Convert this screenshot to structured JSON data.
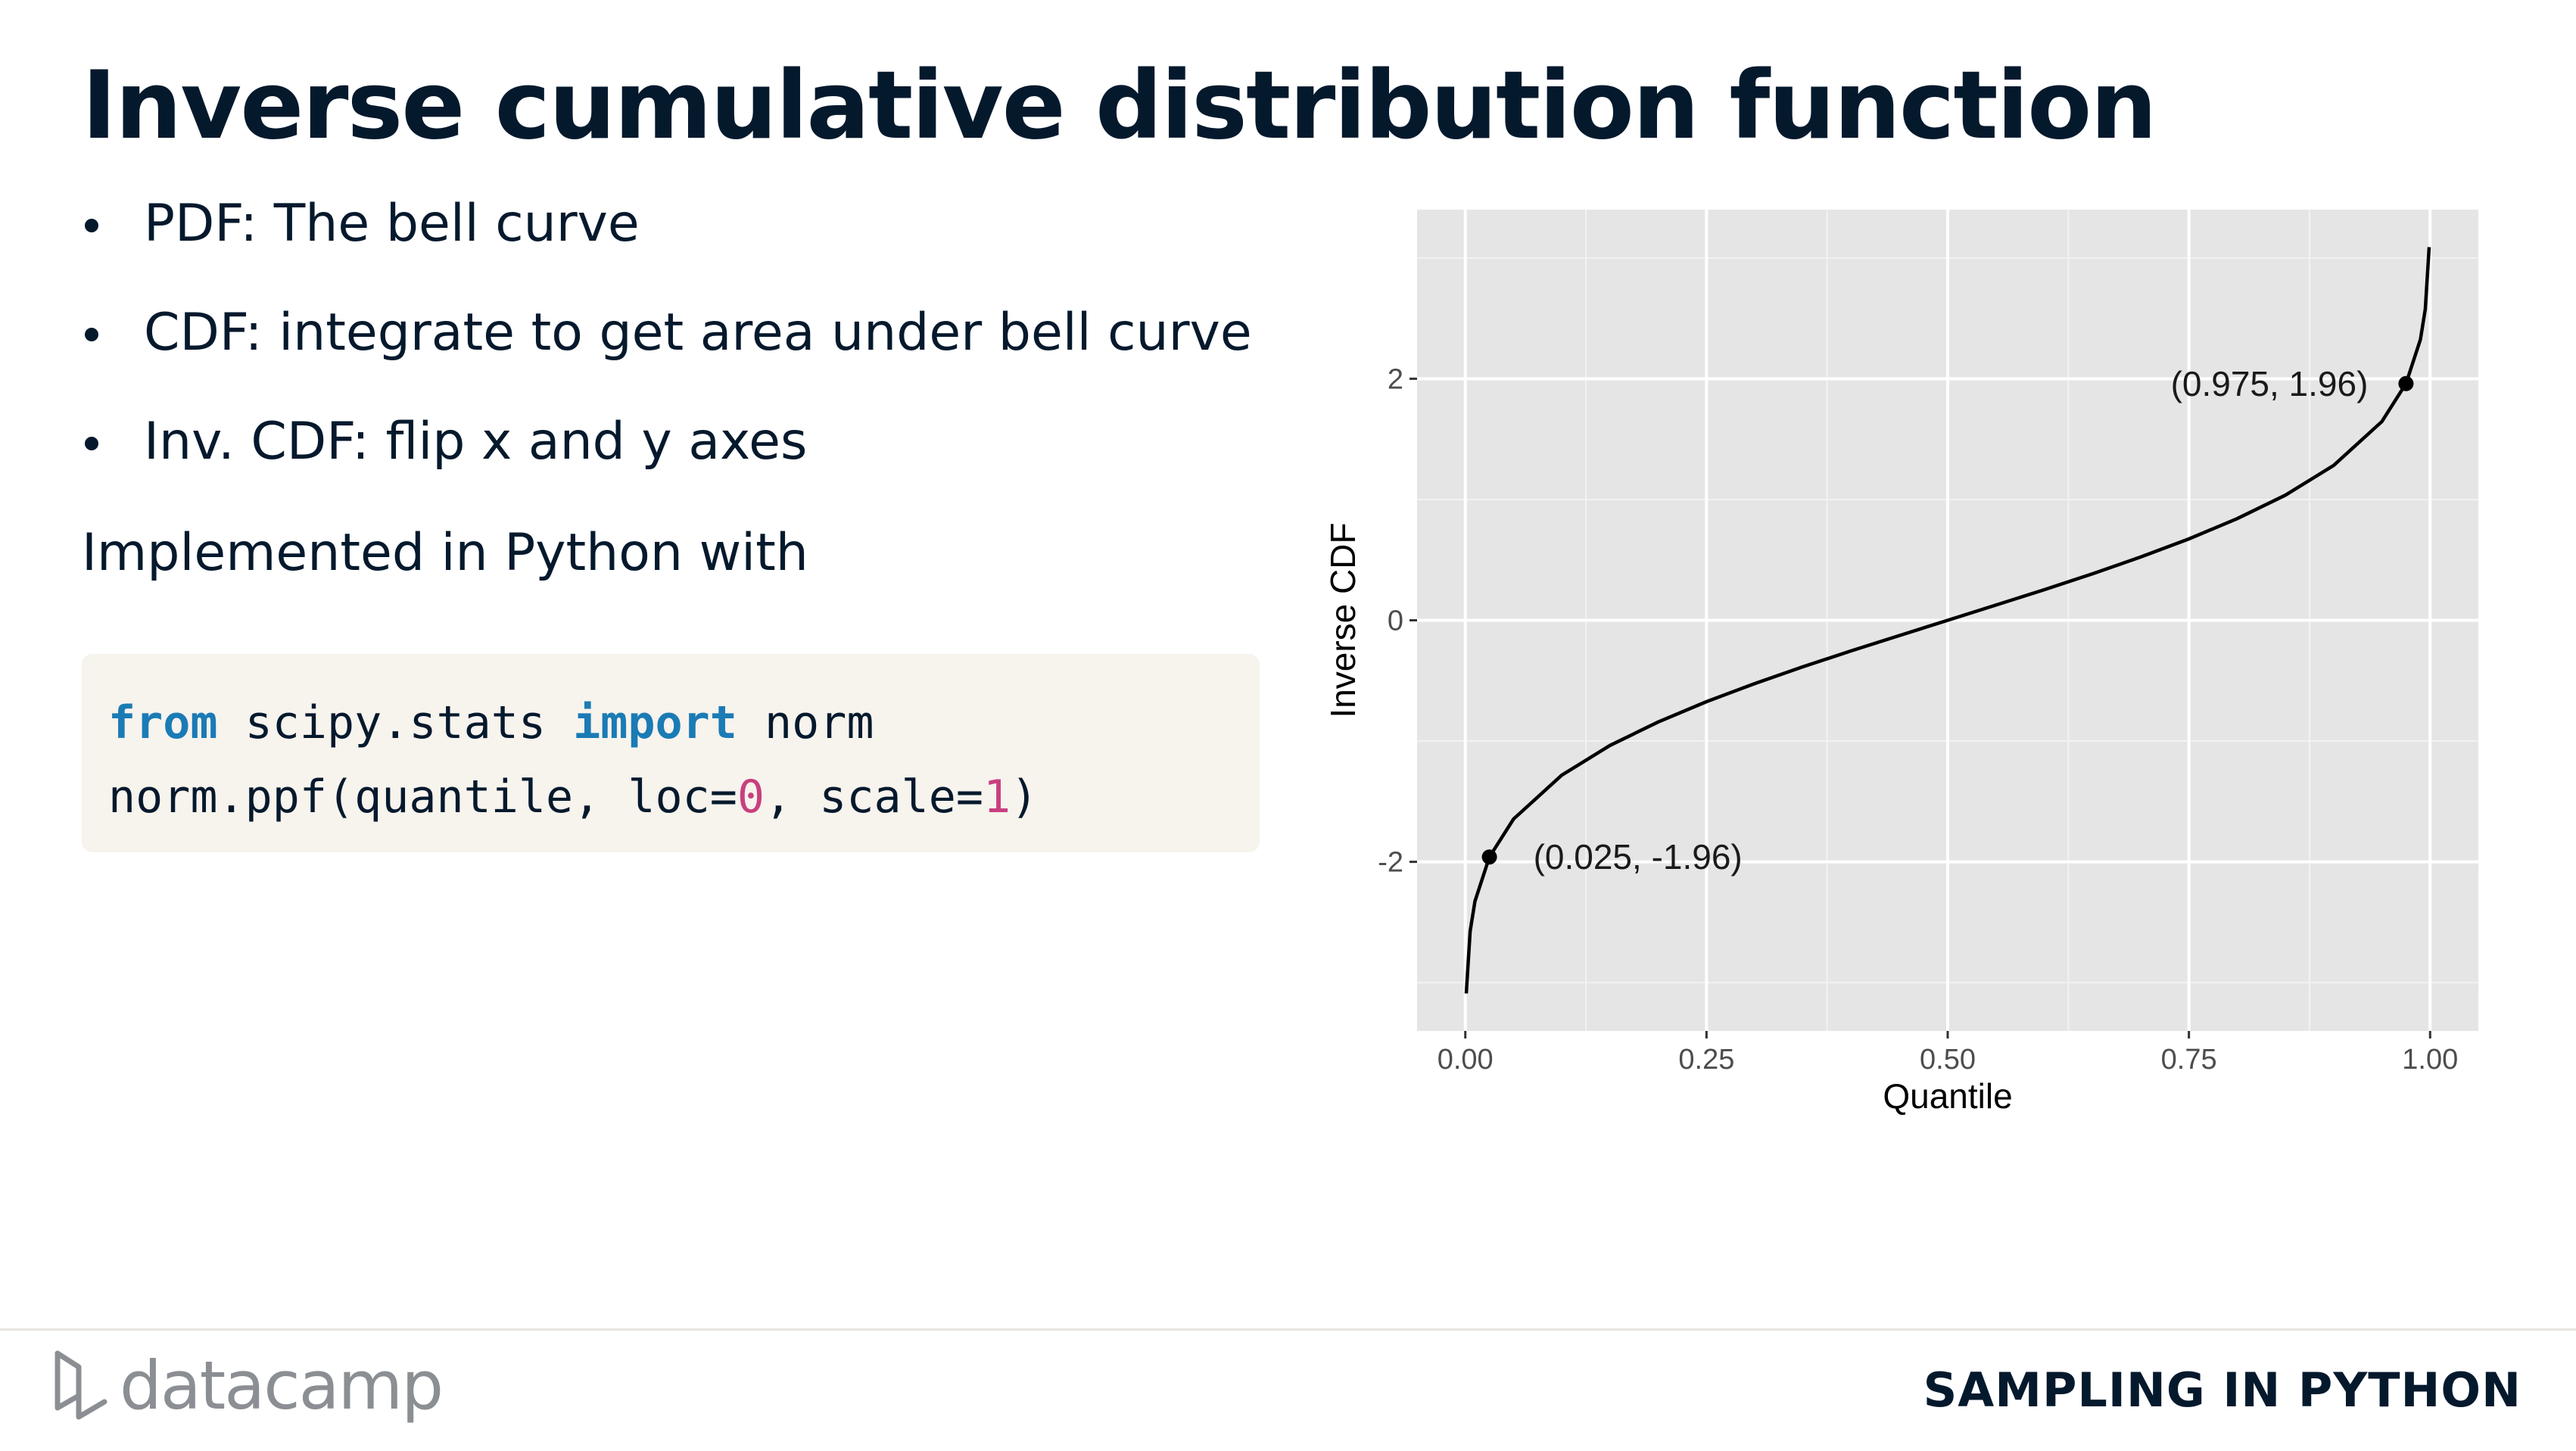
{
  "slide": {
    "title": "Inverse cumulative distribution function",
    "bullets": [
      "PDF: The bell curve",
      "CDF: integrate to get area under bell curve",
      "Inv. CDF: flip x and y axes"
    ],
    "intro": "Implemented in Python with",
    "code": {
      "line1": {
        "kw1": "from",
        "mod": " scipy.stats ",
        "kw2": "import",
        "name": " norm"
      },
      "line2": {
        "pre": "norm.ppf(quantile, loc=",
        "loc": "0",
        "mid": ", scale=",
        "scale": "1",
        "post": ")"
      }
    }
  },
  "chart_data": {
    "type": "line",
    "xlabel": "Quantile",
    "ylabel": "Inverse CDF",
    "xlim": [
      -0.05,
      1.05
    ],
    "ylim": [
      -3.4,
      3.4
    ],
    "x_ticks": [
      "0.00",
      "0.25",
      "0.50",
      "0.75",
      "1.00"
    ],
    "y_ticks": [
      "-2",
      "0",
      "2"
    ],
    "x_tick_values": [
      0,
      0.25,
      0.5,
      0.75,
      1.0
    ],
    "y_tick_values": [
      -2,
      0,
      2
    ],
    "grid": true,
    "background": "#e5e5e5",
    "line_color": "#000000",
    "series": [
      {
        "x": [
          0.001,
          0.005,
          0.01,
          0.025,
          0.05,
          0.1,
          0.15,
          0.2,
          0.25,
          0.3,
          0.35,
          0.4,
          0.45,
          0.5,
          0.55,
          0.6,
          0.65,
          0.7,
          0.75,
          0.8,
          0.85,
          0.9,
          0.95,
          0.975,
          0.99,
          0.995,
          0.999
        ],
        "y": [
          -3.09,
          -2.576,
          -2.326,
          -1.96,
          -1.645,
          -1.282,
          -1.036,
          -0.842,
          -0.674,
          -0.524,
          -0.385,
          -0.253,
          -0.126,
          0.0,
          0.126,
          0.253,
          0.385,
          0.524,
          0.674,
          0.842,
          1.036,
          1.282,
          1.645,
          1.96,
          2.326,
          2.576,
          3.09
        ]
      }
    ],
    "annotations": [
      {
        "x": 0.025,
        "y": -1.96,
        "label": "(0.025, -1.96)"
      },
      {
        "x": 0.975,
        "y": 1.96,
        "label": "(0.975, 1.96)"
      }
    ]
  },
  "footer": {
    "brand": "datacamp",
    "course": "SAMPLING IN PYTHON"
  },
  "colors": {
    "text": "#05192d",
    "keyword": "#1a7bb5",
    "number": "#c93f7f",
    "code_bg": "#f7f3ed"
  }
}
